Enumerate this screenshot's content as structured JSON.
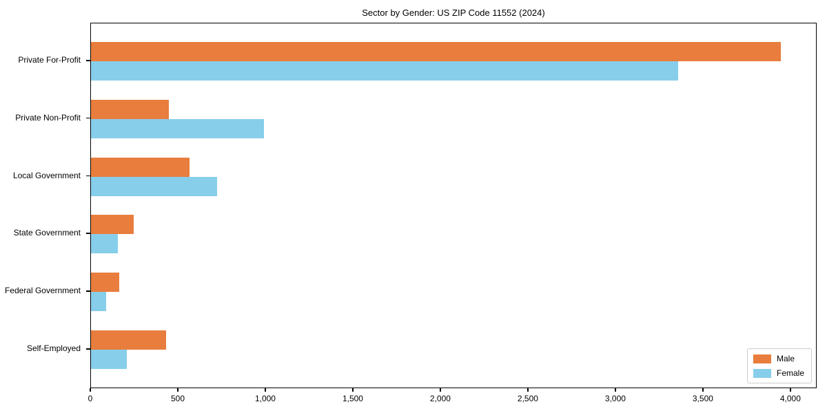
{
  "title": "Sector by Gender: US ZIP Code 11552 (2024)",
  "colors": {
    "male": "#e87d3d",
    "female": "#87ceeb",
    "axis": "#000000",
    "text": "#000000",
    "legend_border": "#cccccc",
    "background": "#ffffff"
  },
  "legend": {
    "position": "lower right",
    "items": [
      {
        "label": "Male",
        "color": "#e87d3d"
      },
      {
        "label": "Female",
        "color": "#87ceeb"
      }
    ]
  },
  "chart_data": {
    "type": "bar",
    "orientation": "horizontal",
    "title": "Sector by Gender: US ZIP Code 11552 (2024)",
    "categories": [
      "Private For-Profit",
      "Private Non-Profit",
      "Local Government",
      "State Government",
      "Federal Government",
      "Self-Employed"
    ],
    "series": [
      {
        "name": "Male",
        "color": "#e87d3d",
        "values": [
          3950,
          445,
          565,
          245,
          160,
          430
        ]
      },
      {
        "name": "Female",
        "color": "#87ceeb",
        "values": [
          3360,
          990,
          720,
          155,
          85,
          205
        ]
      }
    ],
    "xlabel": "",
    "ylabel": "",
    "xlim": [
      0,
      4150
    ],
    "x_ticks": [
      0,
      500,
      1000,
      1500,
      2000,
      2500,
      3000,
      3500,
      4000
    ],
    "x_tick_labels": [
      "0",
      "500",
      "1,000",
      "1,500",
      "2,000",
      "2,500",
      "3,000",
      "3,500",
      "4,000"
    ],
    "grid": false,
    "legend_position": "lower right"
  }
}
